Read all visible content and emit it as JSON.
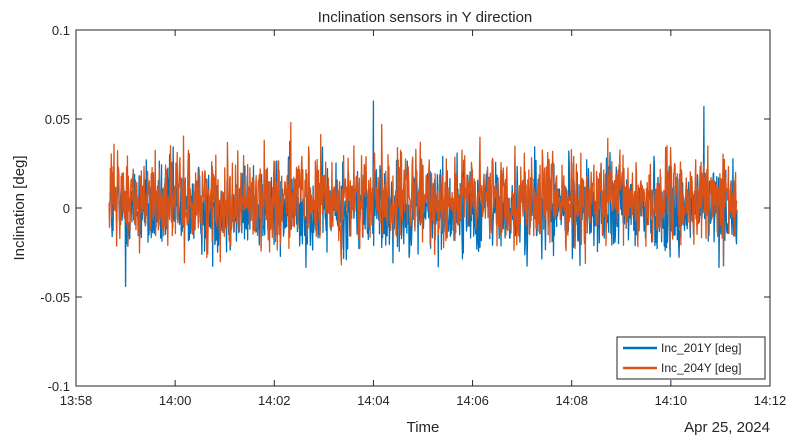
{
  "chart_data": {
    "type": "line",
    "title": "Inclination sensors in Y direction",
    "xlabel": "Time",
    "ylabel": "Inclination [deg]",
    "x_secondary_label": "Apr 25, 2024",
    "xlim": [
      "13:58",
      "14:12"
    ],
    "ylim": [
      -0.1,
      0.1
    ],
    "x_ticks": [
      "13:58",
      "14:00",
      "14:02",
      "14:04",
      "14:06",
      "14:08",
      "14:10",
      "14:12"
    ],
    "y_ticks": [
      {
        "value": -0.1,
        "label": "-0.1"
      },
      {
        "value": -0.05,
        "label": "-0.05"
      },
      {
        "value": 0,
        "label": "0"
      },
      {
        "value": 0.05,
        "label": "0.05"
      },
      {
        "value": 0.1,
        "label": "0.1"
      }
    ],
    "grid": false,
    "legend_position": "bottom-right",
    "series": [
      {
        "name": "Inc_201Y [deg]",
        "color": "#0072BD",
        "summary": {
          "start_time": "13:58:40",
          "end_time": "14:11:20",
          "approx_mean": -0.001,
          "typical_range": [
            -0.03,
            0.03
          ],
          "peaks": [
            {
              "time": "14:04:00",
              "value": 0.06
            },
            {
              "time": "14:10:40",
              "value": 0.057
            },
            {
              "time": "13:59:00",
              "value": -0.044
            }
          ]
        }
      },
      {
        "name": "Inc_204Y [deg]",
        "color": "#D95319",
        "summary": {
          "start_time": "13:58:40",
          "end_time": "14:11:20",
          "approx_mean": 0.003,
          "typical_range": [
            -0.025,
            0.035
          ],
          "peaks": [
            {
              "time": "14:04:10",
              "value": 0.047
            },
            {
              "time": "14:02:20",
              "value": 0.048
            }
          ]
        }
      }
    ]
  }
}
